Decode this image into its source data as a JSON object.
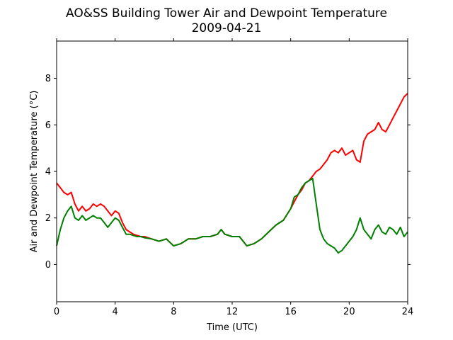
{
  "chart_data": {
    "type": "line",
    "title": "AO&SS Building Tower Air and Dewpoint Temperature",
    "subtitle": "2009-04-21",
    "xlabel": "Time (UTC)",
    "ylabel": "Air and Dewpoint Temperature (°C)",
    "xlim": [
      0,
      24
    ],
    "ylim": [
      -1.6,
      9.6
    ],
    "xticks": [
      0,
      4,
      8,
      12,
      16,
      20,
      24
    ],
    "yticks": [
      0,
      2,
      4,
      6,
      8
    ],
    "grid": false,
    "colors": {
      "air": "#ff0000",
      "dewpoint": "#008000"
    },
    "series": [
      {
        "key": "air",
        "x": [
          0,
          0.25,
          0.5,
          0.75,
          1.0,
          1.25,
          1.5,
          1.75,
          2.0,
          2.25,
          2.5,
          2.75,
          3.0,
          3.25,
          3.5,
          3.75,
          4.0,
          4.25,
          4.5,
          4.75,
          5.0,
          5.25,
          5.5,
          5.75,
          6.0,
          6.5,
          7.0,
          7.5,
          8.0,
          8.5,
          9.0,
          9.5,
          10.0,
          10.5,
          11.0,
          11.25,
          11.5,
          12.0,
          12.5,
          13.0,
          13.5,
          14.0,
          14.5,
          15.0,
          15.5,
          16.0,
          16.25,
          16.5,
          16.75,
          17.0,
          17.25,
          17.5,
          17.75,
          18.0,
          18.25,
          18.5,
          18.75,
          19.0,
          19.25,
          19.5,
          19.75,
          20.0,
          20.25,
          20.5,
          20.75,
          21.0,
          21.25,
          21.5,
          21.75,
          22.0,
          22.25,
          22.5,
          22.75,
          23.0,
          23.25,
          23.5,
          23.75,
          24.0
        ],
        "y": [
          3.5,
          3.3,
          3.1,
          3.0,
          3.1,
          2.6,
          2.3,
          2.5,
          2.3,
          2.4,
          2.6,
          2.5,
          2.6,
          2.5,
          2.3,
          2.1,
          2.3,
          2.2,
          1.8,
          1.5,
          1.4,
          1.3,
          1.25,
          1.2,
          1.2,
          1.1,
          1.0,
          1.1,
          0.8,
          0.9,
          1.1,
          1.1,
          1.2,
          1.2,
          1.3,
          1.5,
          1.3,
          1.2,
          1.2,
          0.8,
          0.9,
          1.1,
          1.4,
          1.7,
          1.9,
          2.4,
          2.7,
          3.0,
          3.2,
          3.5,
          3.6,
          3.8,
          4.0,
          4.1,
          4.3,
          4.5,
          4.8,
          4.9,
          4.8,
          5.0,
          4.7,
          4.8,
          4.9,
          4.5,
          4.4,
          5.3,
          5.6,
          5.7,
          5.8,
          6.1,
          5.8,
          5.7,
          6.0,
          6.3,
          6.6,
          6.9,
          7.2,
          7.35
        ]
      },
      {
        "key": "dewpoint",
        "x": [
          0,
          0.25,
          0.5,
          0.75,
          1.0,
          1.25,
          1.5,
          1.75,
          2.0,
          2.25,
          2.5,
          2.75,
          3.0,
          3.25,
          3.5,
          3.75,
          4.0,
          4.25,
          4.5,
          4.75,
          5.0,
          5.25,
          5.5,
          5.75,
          6.0,
          6.5,
          7.0,
          7.5,
          8.0,
          8.5,
          9.0,
          9.5,
          10.0,
          10.5,
          11.0,
          11.25,
          11.5,
          12.0,
          12.5,
          13.0,
          13.5,
          14.0,
          14.5,
          15.0,
          15.5,
          16.0,
          16.25,
          16.5,
          16.75,
          17.0,
          17.25,
          17.5,
          17.75,
          18.0,
          18.25,
          18.5,
          18.75,
          19.0,
          19.25,
          19.5,
          19.75,
          20.0,
          20.25,
          20.5,
          20.75,
          21.0,
          21.25,
          21.5,
          21.75,
          22.0,
          22.25,
          22.5,
          22.75,
          23.0,
          23.25,
          23.5,
          23.75,
          24.0
        ],
        "y": [
          0.8,
          1.5,
          2.0,
          2.3,
          2.5,
          2.0,
          1.9,
          2.1,
          1.9,
          2.0,
          2.1,
          2.0,
          2.0,
          1.8,
          1.6,
          1.8,
          2.0,
          1.9,
          1.6,
          1.3,
          1.3,
          1.25,
          1.2,
          1.2,
          1.15,
          1.1,
          1.0,
          1.1,
          0.8,
          0.9,
          1.1,
          1.1,
          1.2,
          1.2,
          1.3,
          1.5,
          1.3,
          1.2,
          1.2,
          0.8,
          0.9,
          1.1,
          1.4,
          1.7,
          1.9,
          2.4,
          2.9,
          3.0,
          3.3,
          3.5,
          3.6,
          3.7,
          2.6,
          1.5,
          1.1,
          0.9,
          0.8,
          0.7,
          0.5,
          0.6,
          0.8,
          1.0,
          1.2,
          1.5,
          2.0,
          1.5,
          1.3,
          1.1,
          1.5,
          1.7,
          1.4,
          1.3,
          1.6,
          1.5,
          1.3,
          1.6,
          1.2,
          1.4
        ]
      }
    ]
  }
}
